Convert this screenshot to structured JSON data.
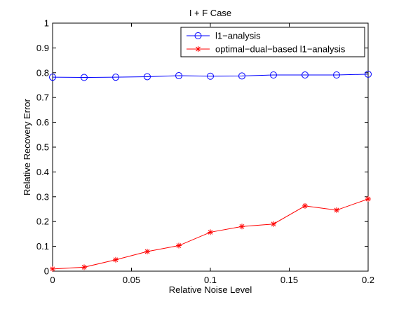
{
  "chart_data": {
    "type": "line",
    "title": "I + F Case",
    "xlabel": "Relative Noise Level",
    "ylabel": "Relative Recovery Error",
    "xlim": [
      0,
      0.2
    ],
    "ylim": [
      0,
      1
    ],
    "x_ticks": [
      "0",
      "0.05",
      "0.1",
      "0.15",
      "0.2"
    ],
    "y_ticks": [
      "0",
      "0.1",
      "0.2",
      "0.3",
      "0.4",
      "0.5",
      "0.6",
      "0.7",
      "0.8",
      "0.9",
      "1"
    ],
    "grid": false,
    "legend_position": "top-right",
    "x": [
      0,
      0.02,
      0.04,
      0.06,
      0.08,
      0.1,
      0.12,
      0.14,
      0.16,
      0.18,
      0.2
    ],
    "series": [
      {
        "name": "l1−analysis",
        "color": "#0000ff",
        "marker": "circle",
        "values": [
          0.782,
          0.781,
          0.782,
          0.784,
          0.788,
          0.786,
          0.787,
          0.791,
          0.791,
          0.791,
          0.794
        ]
      },
      {
        "name": "optimal−dual−based l1−analysis",
        "color": "#ff0000",
        "marker": "asterisk",
        "values": [
          0.009,
          0.016,
          0.046,
          0.079,
          0.103,
          0.157,
          0.18,
          0.19,
          0.263,
          0.246,
          0.291
        ]
      }
    ]
  }
}
